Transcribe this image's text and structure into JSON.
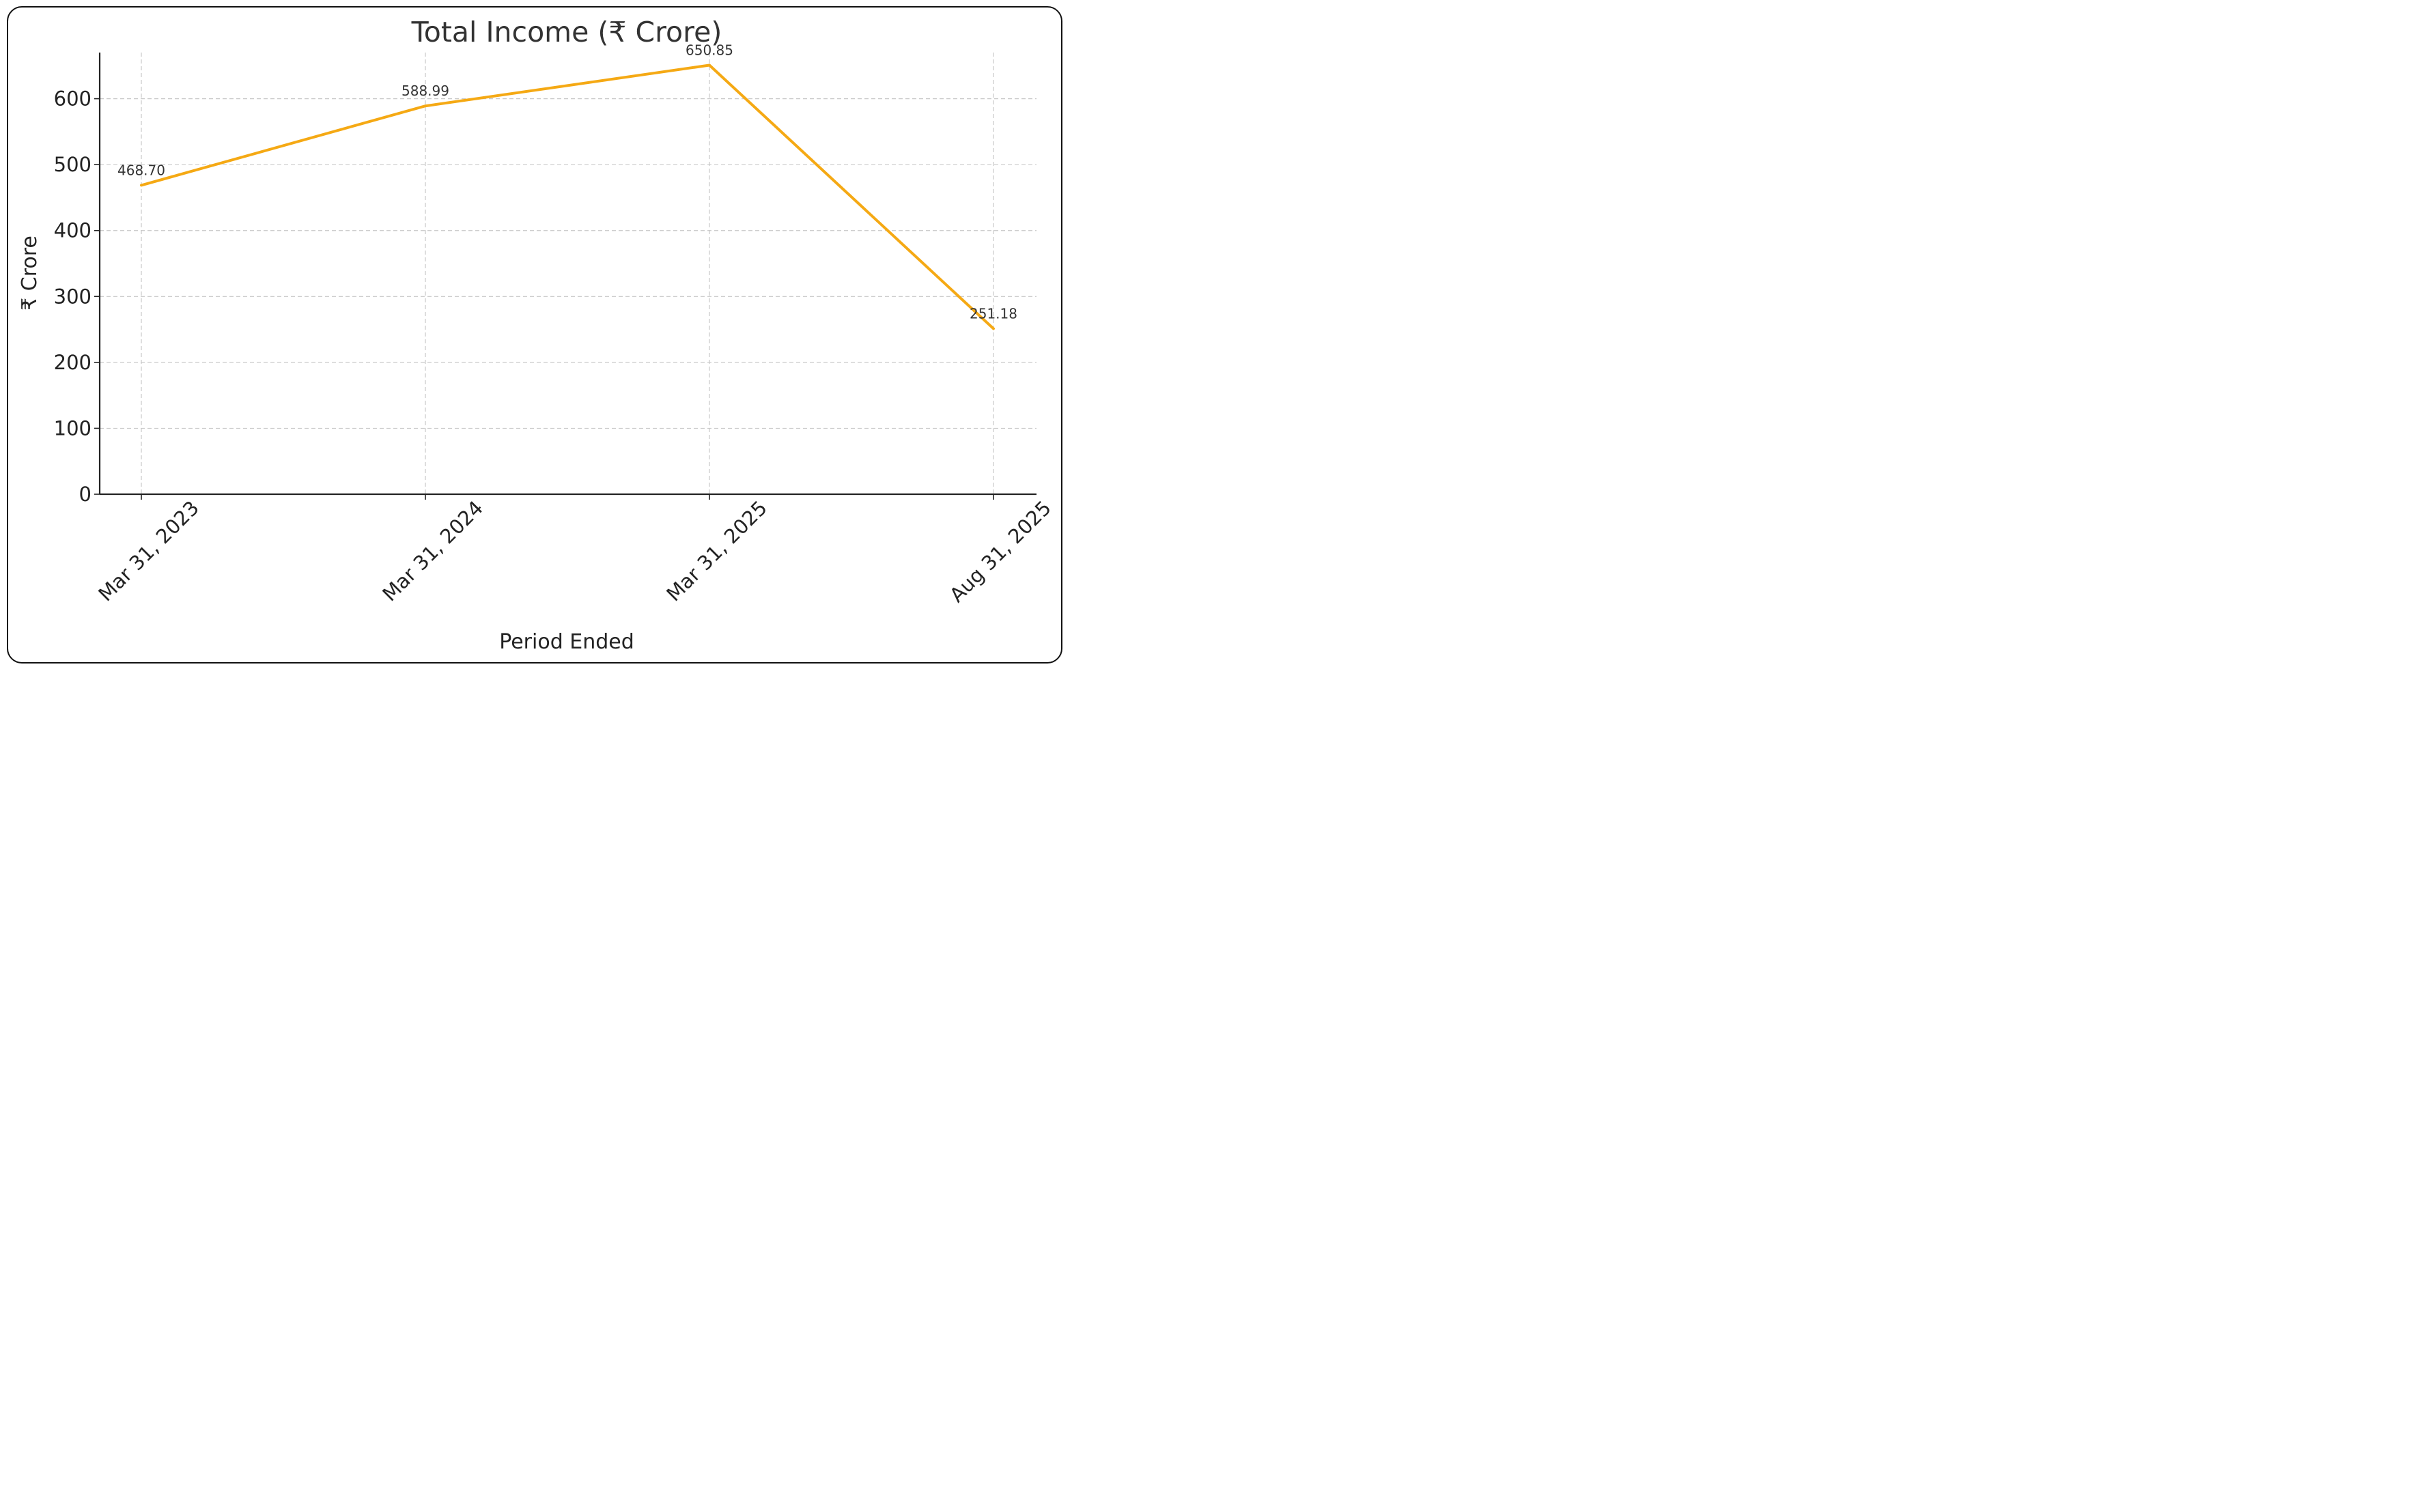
{
  "chart_data": {
    "type": "line",
    "title": "Total Income (₹ Crore)",
    "xlabel": "Period Ended",
    "ylabel": "₹ Crore",
    "categories": [
      "Mar 31, 2023",
      "Mar 31, 2024",
      "Mar 31, 2025",
      "Aug 31, 2025"
    ],
    "values": [
      468.7,
      588.99,
      650.85,
      251.18
    ],
    "data_labels": [
      "468.70",
      "588.99",
      "650.85",
      "251.18"
    ],
    "ylim": [
      0,
      670
    ],
    "yticks": [
      0,
      100,
      200,
      300,
      400,
      500,
      600
    ],
    "grid": true,
    "line_color": "#f5a914"
  }
}
